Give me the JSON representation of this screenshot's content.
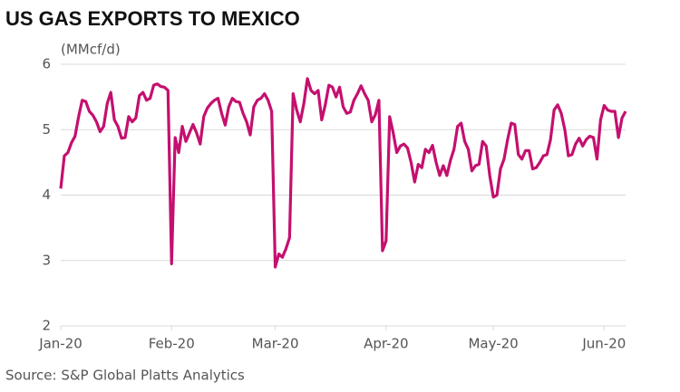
{
  "chart_data": {
    "type": "line",
    "title": "US GAS EXPORTS TO MEXICO",
    "y_label": "(MMcf/d)",
    "source": "Source: S&P Global Platts Analytics",
    "x": [
      0,
      1,
      2,
      3,
      4,
      5,
      6,
      7,
      8,
      9,
      10,
      11,
      12,
      13,
      14,
      15,
      16,
      17,
      18,
      19,
      20,
      21,
      22,
      23,
      24,
      25,
      26,
      27,
      28,
      29,
      30,
      31,
      32,
      33,
      34,
      35,
      36,
      37,
      38,
      39,
      40,
      41,
      42,
      43,
      44,
      45,
      46,
      47,
      48,
      49,
      50,
      51,
      52,
      53,
      54,
      55,
      56,
      57,
      58,
      59,
      60,
      61,
      62,
      63,
      64,
      65,
      66,
      67,
      68,
      69,
      70,
      71,
      72,
      73,
      74,
      75,
      76,
      77,
      78,
      79,
      80,
      81,
      82,
      83,
      84,
      85,
      86,
      87,
      88,
      89,
      90,
      91,
      92,
      93,
      94,
      95,
      96,
      97,
      98,
      99,
      100,
      101,
      102,
      103,
      104,
      105,
      106,
      107,
      108,
      109,
      110,
      111,
      112,
      113,
      114,
      115,
      116,
      117,
      118,
      119,
      120,
      121,
      122,
      123,
      124,
      125,
      126,
      127,
      128,
      129,
      130,
      131,
      132,
      133,
      134,
      135,
      136,
      137,
      138,
      139,
      140,
      141,
      142,
      143,
      144,
      145,
      146,
      147,
      148,
      149,
      150,
      151,
      152,
      153,
      154,
      155,
      156,
      157,
      158
    ],
    "series": [
      {
        "name": "US gas exports to Mexico",
        "color": "#c4106f",
        "values": [
          4.1,
          4.6,
          4.65,
          4.8,
          4.9,
          5.2,
          5.45,
          5.43,
          5.28,
          5.22,
          5.12,
          4.97,
          5.05,
          5.4,
          5.57,
          5.15,
          5.05,
          4.87,
          4.88,
          5.2,
          5.12,
          5.18,
          5.52,
          5.57,
          5.45,
          5.48,
          5.68,
          5.7,
          5.66,
          5.65,
          5.6,
          2.95,
          4.88,
          4.65,
          5.05,
          4.82,
          4.95,
          5.08,
          4.95,
          4.78,
          5.2,
          5.33,
          5.4,
          5.45,
          5.48,
          5.25,
          5.07,
          5.35,
          5.48,
          5.43,
          5.42,
          5.25,
          5.12,
          4.92,
          5.35,
          5.45,
          5.48,
          5.55,
          5.45,
          5.28,
          2.9,
          3.1,
          3.05,
          3.18,
          3.35,
          5.55,
          5.3,
          5.12,
          5.4,
          5.78,
          5.6,
          5.55,
          5.6,
          5.15,
          5.38,
          5.68,
          5.65,
          5.5,
          5.65,
          5.35,
          5.25,
          5.27,
          5.45,
          5.55,
          5.67,
          5.55,
          5.45,
          5.12,
          5.23,
          5.45,
          3.15,
          3.3,
          5.2,
          4.95,
          4.65,
          4.75,
          4.78,
          4.72,
          4.5,
          4.2,
          4.47,
          4.42,
          4.7,
          4.65,
          4.76,
          4.5,
          4.3,
          4.45,
          4.3,
          4.53,
          4.7,
          5.05,
          5.1,
          4.82,
          4.7,
          4.37,
          4.45,
          4.47,
          4.82,
          4.75,
          4.3,
          3.97,
          4.0,
          4.4,
          4.55,
          4.85,
          5.1,
          5.08,
          4.62,
          4.55,
          4.68,
          4.68,
          4.4,
          4.42,
          4.5,
          4.6,
          4.62,
          4.85,
          5.3,
          5.38,
          5.25,
          5.0,
          4.6,
          4.62,
          4.78,
          4.87,
          4.75,
          4.85,
          4.9,
          4.88,
          4.55,
          5.15,
          5.37,
          5.3,
          5.28,
          5.28,
          4.88,
          5.18,
          5.28
        ]
      }
    ],
    "xlim": [
      0,
      158
    ],
    "xticks": [
      {
        "value": 0,
        "label": "Jan-20"
      },
      {
        "value": 31,
        "label": "Feb-20"
      },
      {
        "value": 60,
        "label": "Mar-20"
      },
      {
        "value": 91,
        "label": "Apr-20"
      },
      {
        "value": 121,
        "label": "May-20"
      },
      {
        "value": 152,
        "label": "Jun-20"
      }
    ],
    "ylim": [
      2,
      6
    ],
    "yticks": [
      2,
      3,
      4,
      5,
      6
    ],
    "grid": true
  }
}
